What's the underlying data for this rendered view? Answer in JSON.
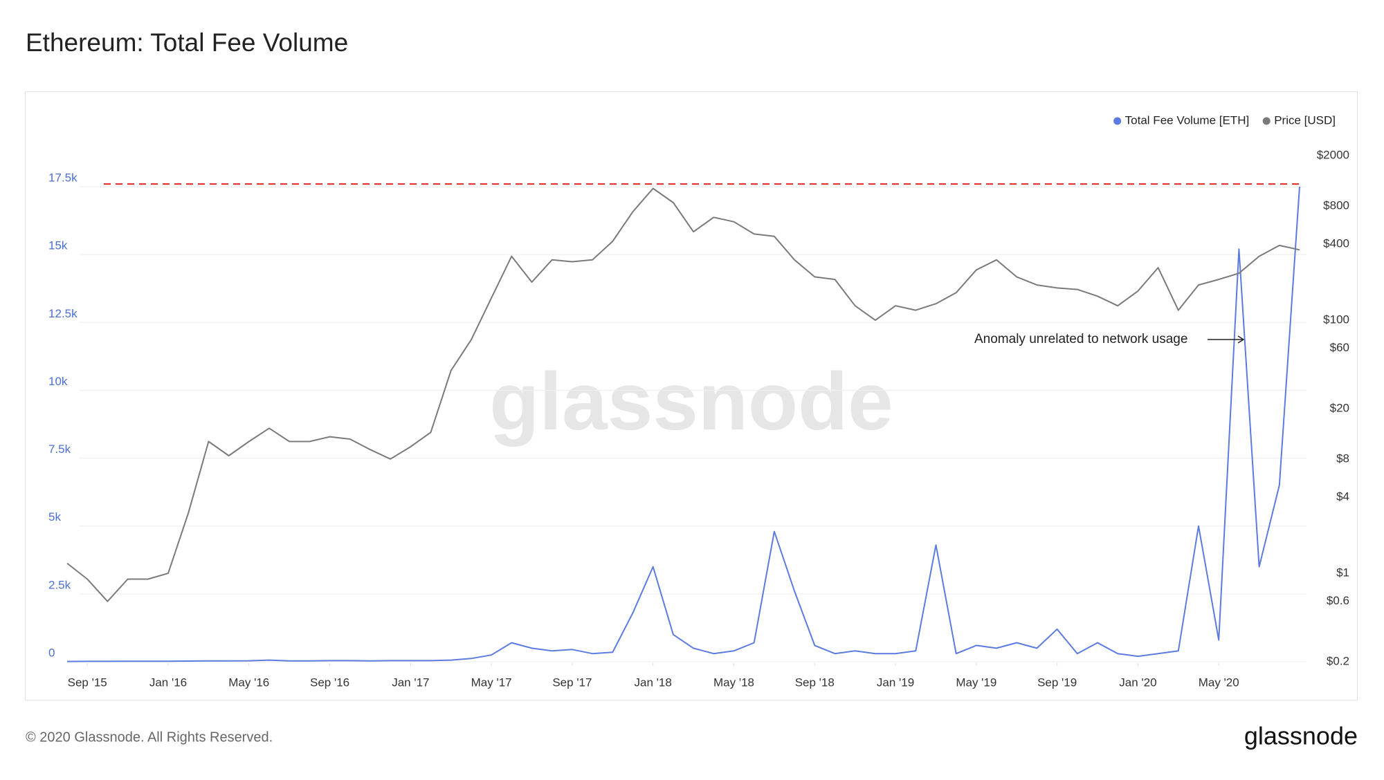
{
  "chart_data": {
    "type": "line",
    "title": "Ethereum: Total Fee Volume",
    "annotation": "Anomaly unrelated to network usage",
    "footer": "© 2020 Glassnode. All Rights Reserved.",
    "brand": "glassnode",
    "watermark": "glassnode",
    "x": [
      "2015-08",
      "2015-09",
      "2015-10",
      "2015-11",
      "2015-12",
      "2016-01",
      "2016-02",
      "2016-03",
      "2016-04",
      "2016-05",
      "2016-06",
      "2016-07",
      "2016-08",
      "2016-09",
      "2016-10",
      "2016-11",
      "2016-12",
      "2017-01",
      "2017-02",
      "2017-03",
      "2017-04",
      "2017-05",
      "2017-06",
      "2017-07",
      "2017-08",
      "2017-09",
      "2017-10",
      "2017-11",
      "2017-12",
      "2018-01",
      "2018-02",
      "2018-03",
      "2018-04",
      "2018-05",
      "2018-06",
      "2018-07",
      "2018-08",
      "2018-09",
      "2018-10",
      "2018-11",
      "2018-12",
      "2019-01",
      "2019-02",
      "2019-03",
      "2019-04",
      "2019-05",
      "2019-06",
      "2019-07",
      "2019-08",
      "2019-09",
      "2019-10",
      "2019-11",
      "2019-12",
      "2020-01",
      "2020-02",
      "2020-03",
      "2020-04",
      "2020-05",
      "2020-06",
      "2020-07",
      "2020-08",
      "2020-09"
    ],
    "xlim": [
      "2015-08",
      "2020-09"
    ],
    "xticks": [
      {
        "value": "2015-09",
        "label": "Sep '15"
      },
      {
        "value": "2016-01",
        "label": "Jan '16"
      },
      {
        "value": "2016-05",
        "label": "May '16"
      },
      {
        "value": "2016-09",
        "label": "Sep '16"
      },
      {
        "value": "2017-01",
        "label": "Jan '17"
      },
      {
        "value": "2017-05",
        "label": "May '17"
      },
      {
        "value": "2017-09",
        "label": "Sep '17"
      },
      {
        "value": "2018-01",
        "label": "Jan '18"
      },
      {
        "value": "2018-05",
        "label": "May '18"
      },
      {
        "value": "2018-09",
        "label": "Sep '18"
      },
      {
        "value": "2019-01",
        "label": "Jan '19"
      },
      {
        "value": "2019-05",
        "label": "May '19"
      },
      {
        "value": "2019-09",
        "label": "Sep '19"
      },
      {
        "value": "2020-01",
        "label": "Jan '20"
      },
      {
        "value": "2020-05",
        "label": "May '20"
      }
    ],
    "ylim": [
      0,
      17500
    ],
    "yticks": [
      0,
      {
        "value": 2500,
        "label": "2.5k"
      },
      {
        "value": 5000,
        "label": "5k"
      },
      {
        "value": 7500,
        "label": "7.5k"
      },
      {
        "value": 10000,
        "label": "10k"
      },
      {
        "value": 12500,
        "label": "12.5k"
      },
      {
        "value": 15000,
        "label": "15k"
      },
      {
        "value": 17500,
        "label": "17.5k"
      }
    ],
    "y2lim": [
      0.2,
      2000
    ],
    "y2scale": "log",
    "y2ticks": [
      {
        "value": 0.2,
        "label": "$0.2"
      },
      {
        "value": 0.6,
        "label": "$0.6"
      },
      {
        "value": 1,
        "label": "$1"
      },
      {
        "value": 4,
        "label": "$4"
      },
      {
        "value": 8,
        "label": "$8"
      },
      {
        "value": 20,
        "label": "$20"
      },
      {
        "value": 60,
        "label": "$60"
      },
      {
        "value": 100,
        "label": "$100"
      },
      {
        "value": 400,
        "label": "$400"
      },
      {
        "value": 800,
        "label": "$800"
      },
      {
        "value": 2000,
        "label": "$2000"
      }
    ],
    "grid": true,
    "legend": "top-right",
    "reference_line": {
      "value": 17600,
      "color": "#e5261f"
    },
    "series": [
      {
        "name": "Total Fee Volume [ETH]",
        "color": "#5b7be0",
        "axis": "y",
        "values": [
          10,
          15,
          15,
          20,
          20,
          20,
          25,
          30,
          30,
          35,
          60,
          30,
          30,
          40,
          40,
          30,
          40,
          40,
          40,
          60,
          120,
          250,
          700,
          500,
          400,
          450,
          300,
          350,
          1800,
          3500,
          1000,
          500,
          300,
          400,
          700,
          4800,
          2600,
          600,
          300,
          400,
          300,
          300,
          400,
          4300,
          300,
          600,
          500,
          700,
          500,
          1200,
          300,
          700,
          300,
          200,
          300,
          400,
          5000,
          800,
          15200,
          3500,
          6500,
          17500
        ]
      },
      {
        "name": "Price [USD]",
        "color": "#7a7a7a",
        "axis": "y2",
        "values": [
          1.2,
          0.9,
          0.6,
          0.9,
          0.9,
          1.0,
          3,
          11,
          8.5,
          11,
          14,
          11,
          11,
          12,
          11.5,
          9.5,
          8,
          10,
          13,
          40,
          70,
          150,
          320,
          200,
          300,
          290,
          300,
          420,
          720,
          1100,
          850,
          500,
          650,
          600,
          480,
          460,
          300,
          220,
          210,
          130,
          100,
          130,
          120,
          135,
          165,
          250,
          300,
          220,
          190,
          180,
          175,
          155,
          130,
          170,
          260,
          120,
          190,
          210,
          235,
          320,
          390,
          360
        ]
      }
    ]
  }
}
